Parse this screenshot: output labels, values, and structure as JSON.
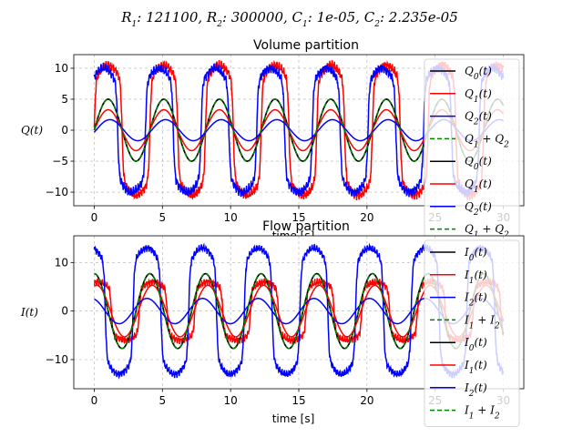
{
  "suptitle": "R_1: 121100, R_2: 300000, C_1: 1e-05, C_2: 2.235e-05",
  "chart_data": [
    {
      "type": "line",
      "title": "Volume partition",
      "xlabel": "time [s]",
      "ylabel": "Q(t)",
      "xlim": [
        -1.5,
        31.5
      ],
      "ylim": [
        -12.2,
        12.2
      ],
      "xticks": [
        0,
        5,
        10,
        15,
        20,
        25,
        30
      ],
      "yticks": [
        -10,
        -5,
        0,
        5,
        10
      ],
      "grid": true,
      "legend_position": "right",
      "period": 4.08,
      "series": [
        {
          "name": "Q_0(t)",
          "color": "#000000",
          "dash": "solid",
          "amplitude": 5.0,
          "phase": 0.0,
          "shape": "sine"
        },
        {
          "name": "Q_1(t)",
          "color": "#ff0000",
          "dash": "solid",
          "amplitude": 10.5,
          "phase": 0.0,
          "shape": "square-noisy"
        },
        {
          "name": "Q_2(t)",
          "color": "#0000ff",
          "dash": "solid",
          "amplitude": 10.0,
          "phase": 0.5,
          "shape": "square-noisy"
        },
        {
          "name": "Q_1 + Q_2",
          "color": "#008000",
          "dash": "dashed",
          "amplitude": 5.0,
          "phase": 0.0,
          "shape": "sine"
        },
        {
          "name": "Q_0(t)",
          "color": "#000000",
          "dash": "solid",
          "amplitude": 5.0,
          "phase": 0.0,
          "shape": "sine"
        },
        {
          "name": "Q_1(t)",
          "color": "#ff0000",
          "dash": "solid",
          "amplitude": 3.3,
          "phase": 0.0,
          "shape": "sine"
        },
        {
          "name": "Q_2(t)",
          "color": "#0000ff",
          "dash": "solid",
          "amplitude": 1.7,
          "phase": -0.2,
          "shape": "sine"
        },
        {
          "name": "Q_1 + Q_2",
          "color": "#008000",
          "dash": "dashed",
          "amplitude": 5.0,
          "phase": 0.0,
          "shape": "sine"
        }
      ]
    },
    {
      "type": "line",
      "title": "Flow partition",
      "xlabel": "time [s]",
      "ylabel": "I(t)",
      "xlim": [
        -1.5,
        31.5
      ],
      "ylim": [
        -16,
        15.5
      ],
      "xticks": [
        0,
        5,
        10,
        15,
        20,
        25,
        30
      ],
      "yticks": [
        -10,
        0,
        10
      ],
      "grid": true,
      "legend_position": "right",
      "period": 4.08,
      "series": [
        {
          "name": "I_0(t)",
          "color": "#000000",
          "dash": "solid",
          "amplitude": 7.7,
          "phase": 1.5708,
          "shape": "sine"
        },
        {
          "name": "I_1(t)",
          "color": "#ff0000",
          "dash": "solid",
          "amplitude": 6.0,
          "phase": 1.2,
          "shape": "square-noisy"
        },
        {
          "name": "I_2(t)",
          "color": "#0000ff",
          "dash": "solid",
          "amplitude": 13.0,
          "phase": 1.9,
          "shape": "square-noisy"
        },
        {
          "name": "I_1 + I_2",
          "color": "#008000",
          "dash": "dashed",
          "amplitude": 7.7,
          "phase": 1.5708,
          "shape": "sine"
        },
        {
          "name": "I_0(t)",
          "color": "#000000",
          "dash": "solid",
          "amplitude": 7.7,
          "phase": 1.5708,
          "shape": "sine"
        },
        {
          "name": "I_1(t)",
          "color": "#ff0000",
          "dash": "solid",
          "amplitude": 5.3,
          "phase": 1.3,
          "shape": "sine"
        },
        {
          "name": "I_2(t)",
          "color": "#0000ff",
          "dash": "solid",
          "amplitude": 2.6,
          "phase": 1.9,
          "shape": "sine"
        },
        {
          "name": "I_1 + I_2",
          "color": "#008000",
          "dash": "dashed",
          "amplitude": 7.7,
          "phase": 1.5708,
          "shape": "sine"
        }
      ]
    }
  ]
}
